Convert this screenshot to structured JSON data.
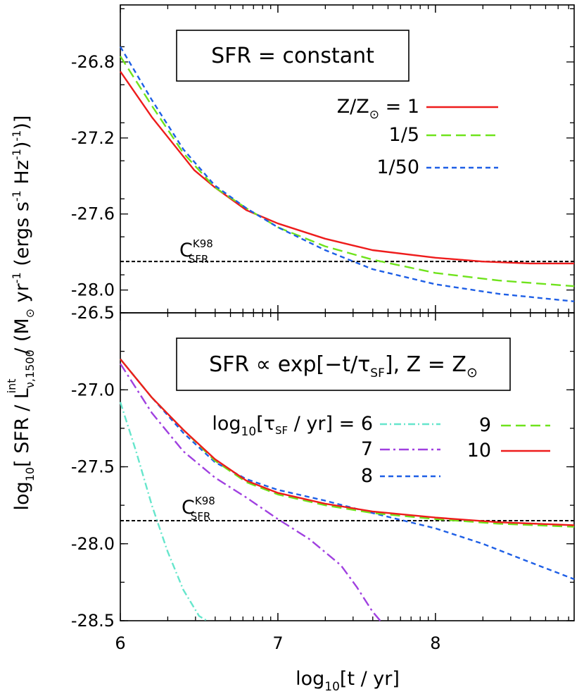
{
  "chart_data": [
    {
      "type": "line",
      "panel": "top",
      "box_label": "SFR = constant",
      "xlim": [
        6,
        8.88
      ],
      "ylim": [
        -28.12,
        -26.5
      ],
      "y_ticks": [
        -26.8,
        -27.2,
        -27.6,
        -28.0
      ],
      "y_tick_labels": [
        "-26.8",
        "-27.2",
        "-27.6",
        "-28.0"
      ],
      "reference_line": {
        "y": -27.85,
        "label_main": "C",
        "label_sup": "K98",
        "label_sub": "SFR",
        "color": "#000000"
      },
      "legend_title": {
        "main": "Z/Z",
        "sub": "⊙",
        "tail": " = 1"
      },
      "series": [
        {
          "name": "1",
          "legend": "Z/Z⊙ = 1",
          "color": "#ee1c1c",
          "dash": "",
          "x": [
            6.0,
            6.2,
            6.47,
            6.6,
            6.8,
            7.0,
            7.3,
            7.6,
            8.0,
            8.3,
            8.6,
            8.88
          ],
          "y": [
            -26.85,
            -27.09,
            -27.37,
            -27.46,
            -27.58,
            -27.65,
            -27.73,
            -27.79,
            -27.83,
            -27.85,
            -27.86,
            -27.86
          ]
        },
        {
          "name": "1/5",
          "legend": "1/5",
          "color": "#6fe31c",
          "dash": "14,7",
          "x": [
            6.0,
            6.2,
            6.4,
            6.6,
            6.8,
            7.0,
            7.3,
            7.6,
            8.0,
            8.4,
            8.88
          ],
          "y": [
            -26.77,
            -27.03,
            -27.28,
            -27.46,
            -27.57,
            -27.67,
            -27.77,
            -27.84,
            -27.91,
            -27.95,
            -27.98
          ]
        },
        {
          "name": "1/50",
          "legend": "1/50",
          "color": "#1e5fe6",
          "dash": "7,5",
          "x": [
            6.0,
            6.2,
            6.4,
            6.6,
            6.8,
            7.0,
            7.3,
            7.6,
            8.0,
            8.4,
            8.88
          ],
          "y": [
            -26.72,
            -27.0,
            -27.26,
            -27.45,
            -27.57,
            -27.67,
            -27.79,
            -27.89,
            -27.97,
            -28.02,
            -28.06
          ]
        }
      ]
    },
    {
      "type": "line",
      "panel": "bottom",
      "box_label": {
        "main": "SFR ∝ exp[−t/τ",
        "sub": "SF",
        "mid": "], Z = Z",
        "sub2": "⊙"
      },
      "xlim": [
        6,
        8.88
      ],
      "ylim": [
        -28.5,
        -26.5
      ],
      "y_ticks": [
        -26.5,
        -27.0,
        -27.5,
        -28.0,
        -28.5
      ],
      "y_tick_labels": [
        "-26.5",
        "-27.0",
        "-27.5",
        "-28.0",
        "-28.5"
      ],
      "x_ticks": [
        6,
        7,
        8
      ],
      "x_tick_labels": [
        "6",
        "7",
        "8"
      ],
      "reference_line": {
        "y": -27.85,
        "label_main": "C",
        "label_sup": "K98",
        "label_sub": "SFR",
        "color": "#000000"
      },
      "legend_title": {
        "main": "log",
        "sub": "10",
        "bracket": "[",
        "tau": "τ",
        "tau_sub": "SF",
        "tail": " / yr] = 6"
      },
      "series": [
        {
          "name": "6",
          "legend": "6",
          "color": "#66e6cc",
          "dash": "10,4,2,4",
          "x": [
            6.0,
            6.1,
            6.2,
            6.3,
            6.4,
            6.5,
            6.55
          ],
          "y": [
            -27.08,
            -27.4,
            -27.75,
            -28.05,
            -28.3,
            -28.47,
            -28.52
          ]
        },
        {
          "name": "7",
          "legend": "7",
          "color": "#a040e0",
          "dash": "14,5,3,5",
          "x": [
            6.0,
            6.2,
            6.4,
            6.6,
            6.8,
            7.0,
            7.2,
            7.4,
            7.5,
            7.6,
            7.65
          ],
          "y": [
            -26.83,
            -27.15,
            -27.4,
            -27.57,
            -27.7,
            -27.84,
            -27.97,
            -28.14,
            -28.28,
            -28.44,
            -28.52
          ]
        },
        {
          "name": "8",
          "legend": "8",
          "color": "#1e5fe6",
          "dash": "7,5",
          "x": [
            6.0,
            6.2,
            6.4,
            6.6,
            6.8,
            7.0,
            7.3,
            7.6,
            8.0,
            8.3,
            8.6,
            8.88
          ],
          "y": [
            -26.8,
            -27.05,
            -27.28,
            -27.47,
            -27.58,
            -27.65,
            -27.72,
            -27.8,
            -27.9,
            -28.0,
            -28.12,
            -28.23
          ]
        },
        {
          "name": "9",
          "legend": "9",
          "color": "#6fe31c",
          "dash": "14,7",
          "x": [
            6.0,
            6.2,
            6.4,
            6.6,
            6.8,
            7.0,
            7.3,
            7.6,
            8.0,
            8.4,
            8.88
          ],
          "y": [
            -26.8,
            -27.05,
            -27.26,
            -27.46,
            -27.6,
            -27.68,
            -27.75,
            -27.8,
            -27.84,
            -27.87,
            -27.89
          ]
        },
        {
          "name": "10",
          "legend": "10",
          "color": "#ee1c1c",
          "dash": "",
          "x": [
            6.0,
            6.2,
            6.4,
            6.6,
            6.8,
            7.0,
            7.3,
            7.6,
            8.0,
            8.4,
            8.88
          ],
          "y": [
            -26.8,
            -27.05,
            -27.26,
            -27.45,
            -27.59,
            -27.67,
            -27.74,
            -27.79,
            -27.83,
            -27.86,
            -27.88
          ]
        }
      ]
    }
  ],
  "shared": {
    "x_label": {
      "main": "log",
      "sub": "10",
      "tail": "[t / yr]"
    },
    "y_label": {
      "p1": "log",
      "s1": "10",
      "p2": "[ SFR / L",
      "s2": "ν,1500",
      "sup2": "int",
      "p3": " / (M",
      "s3": "⊙",
      "p4": " yr",
      "sup4": "-1",
      "p5": "  (ergs s",
      "sup5": "-1",
      "p6": " Hz",
      "sup6": "-1",
      "p7": ")",
      "sup7": "-1",
      "p8": ")]"
    }
  }
}
